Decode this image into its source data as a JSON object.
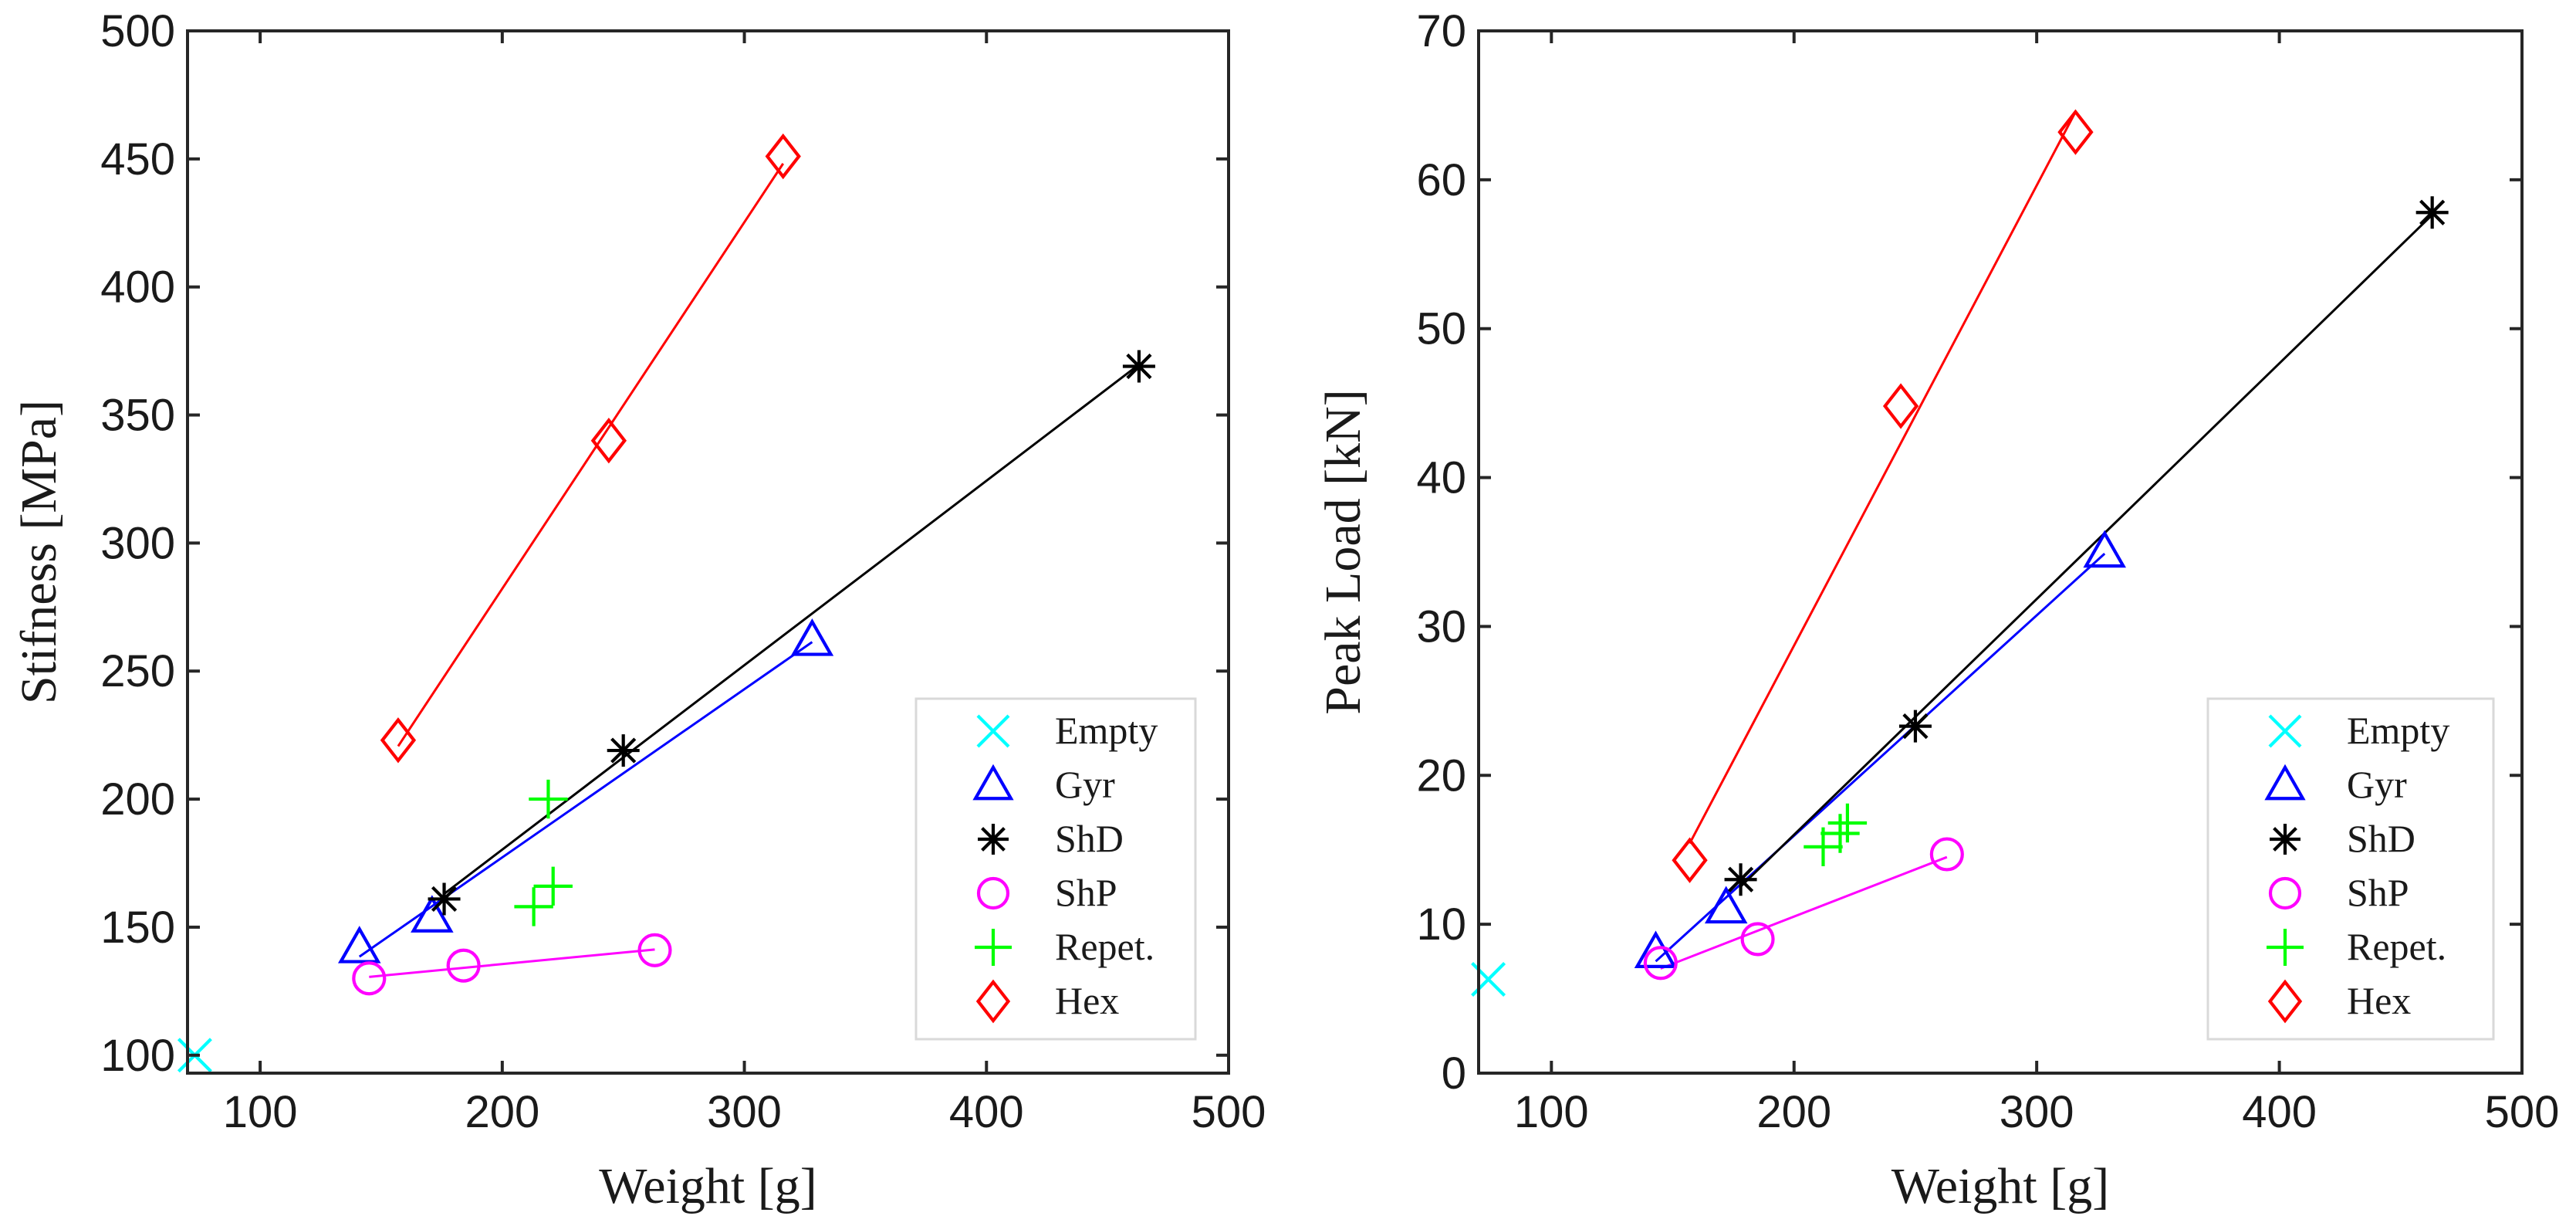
{
  "chart_data": [
    {
      "type": "scatter",
      "id": "stiffness",
      "title": "",
      "xlabel": "Weight [g]",
      "ylabel": "Stifness [MPa]",
      "xlim": [
        70,
        500
      ],
      "ylim": [
        93,
        500
      ],
      "xticks": [
        100,
        200,
        300,
        400,
        500
      ],
      "yticks": [
        100,
        150,
        200,
        250,
        300,
        350,
        400,
        450,
        500
      ],
      "legend_position": "bottom-right",
      "series": [
        {
          "name": "Empty",
          "marker": "x",
          "color": "#00ffff",
          "fit": false,
          "x": [
            73
          ],
          "y": [
            100
          ]
        },
        {
          "name": "Gyr",
          "marker": "triangle",
          "color": "#0000ff",
          "fit": true,
          "x": [
            141,
            171,
            328
          ],
          "y": [
            142,
            154,
            262
          ]
        },
        {
          "name": "ShD",
          "marker": "asterisk",
          "color": "#000000",
          "fit": true,
          "x": [
            176,
            250,
            463
          ],
          "y": [
            161,
            219,
            369
          ]
        },
        {
          "name": "ShP",
          "marker": "circle",
          "color": "#ff00ff",
          "fit": true,
          "x": [
            145,
            184,
            263
          ],
          "y": [
            130,
            135,
            141
          ]
        },
        {
          "name": "Repet.",
          "marker": "plus",
          "color": "#00ff00",
          "fit": false,
          "x": [
            213,
            221,
            219
          ],
          "y": [
            158,
            166,
            200
          ]
        },
        {
          "name": "Hex",
          "marker": "diamond",
          "color": "#ff0000",
          "fit": true,
          "x": [
            157,
            244,
            316
          ],
          "y": [
            223,
            340,
            451
          ]
        }
      ]
    },
    {
      "type": "scatter",
      "id": "peak-load",
      "title": "",
      "xlabel": "Weight [g]",
      "ylabel": "Peak Load [kN]",
      "xlim": [
        70,
        500
      ],
      "ylim": [
        0,
        70
      ],
      "xticks": [
        100,
        200,
        300,
        400,
        500
      ],
      "yticks": [
        0,
        10,
        20,
        30,
        40,
        50,
        60,
        70
      ],
      "legend_position": "bottom-right",
      "series": [
        {
          "name": "Empty",
          "marker": "x",
          "color": "#00ffff",
          "fit": false,
          "x": [
            74
          ],
          "y": [
            6.3
          ]
        },
        {
          "name": "Gyr",
          "marker": "triangle",
          "color": "#0000ff",
          "fit": true,
          "x": [
            143,
            172,
            328
          ],
          "y": [
            8.1,
            11.1,
            35.0
          ]
        },
        {
          "name": "ShD",
          "marker": "asterisk",
          "color": "#000000",
          "fit": true,
          "x": [
            178,
            250,
            463
          ],
          "y": [
            13.0,
            23.3,
            57.8
          ]
        },
        {
          "name": "ShP",
          "marker": "circle",
          "color": "#ff00ff",
          "fit": true,
          "x": [
            145,
            185,
            263
          ],
          "y": [
            7.4,
            9.0,
            14.7
          ]
        },
        {
          "name": "Repet.",
          "marker": "plus",
          "color": "#00ff00",
          "fit": false,
          "x": [
            212,
            219,
            222
          ],
          "y": [
            15.2,
            16.1,
            16.8
          ]
        },
        {
          "name": "Hex",
          "marker": "diamond",
          "color": "#ff0000",
          "fit": true,
          "x": [
            157,
            244,
            316
          ],
          "y": [
            14.3,
            44.8,
            63.2
          ]
        }
      ]
    }
  ]
}
